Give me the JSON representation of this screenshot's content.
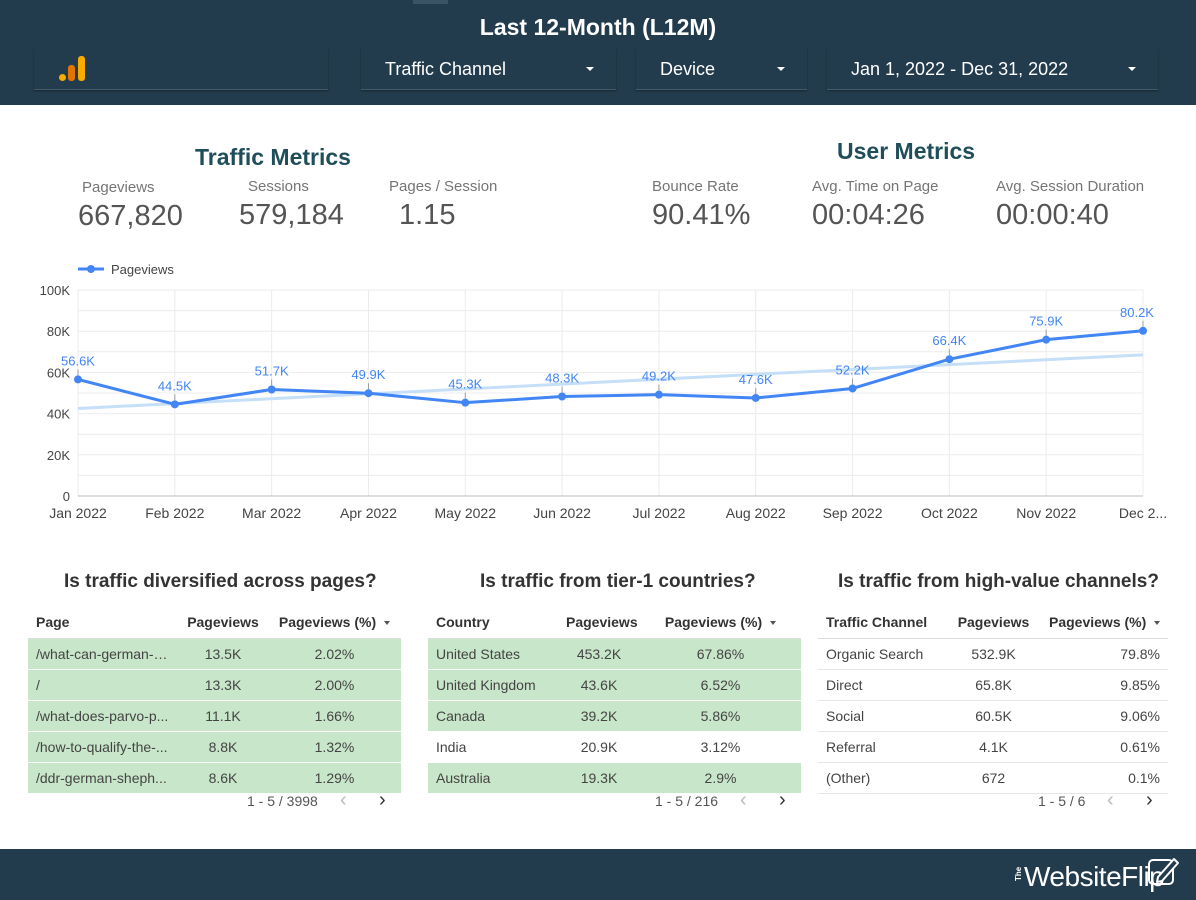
{
  "header": {
    "title": "Last 12-Month (L12M)",
    "filters": {
      "traffic_channel": "Traffic Channel",
      "device": "Device",
      "date_range": "Jan 1, 2022 - Dec 31, 2022"
    }
  },
  "traffic_metrics": {
    "title": "Traffic Metrics",
    "items": [
      {
        "label": "Pageviews",
        "value": "667,820"
      },
      {
        "label": "Sessions",
        "value": "579,184"
      },
      {
        "label": "Pages / Session",
        "value": "1.15"
      }
    ]
  },
  "user_metrics": {
    "title": "User Metrics",
    "items": [
      {
        "label": "Bounce Rate",
        "value": "90.41%"
      },
      {
        "label": "Avg. Time on Page",
        "value": "00:04:26"
      },
      {
        "label": "Avg. Session Duration",
        "value": "00:00:40"
      }
    ]
  },
  "colors": {
    "header_bg": "#233c4d",
    "series": "#4285f4",
    "trend": "#c6dff8",
    "highlight_row": "#c8e6c9",
    "section_title": "#1f4e5a"
  },
  "chart_data": {
    "type": "line",
    "legend": "top-left",
    "categories": [
      "Jan 2022",
      "Feb 2022",
      "Mar 2022",
      "Apr 2022",
      "May 2022",
      "Jun 2022",
      "Jul 2022",
      "Aug 2022",
      "Sep 2022",
      "Oct 2022",
      "Nov 2022",
      "Dec 2..."
    ],
    "series": [
      {
        "name": "Pageviews",
        "values": [
          56600,
          44500,
          51700,
          49900,
          45300,
          48300,
          49200,
          47600,
          52200,
          66400,
          75900,
          80200
        ],
        "labels": [
          "56.6K",
          "44.5K",
          "51.7K",
          "49.9K",
          "45.3K",
          "48.3K",
          "49.2K",
          "47.6K",
          "52.2K",
          "66.4K",
          "75.9K",
          "80.2K"
        ]
      }
    ],
    "trendline": {
      "start": 42500,
      "end": 68500
    },
    "yticks": [
      "0",
      "20K",
      "40K",
      "60K",
      "80K",
      "100K"
    ],
    "ylim": [
      0,
      100000
    ],
    "grid": true
  },
  "tables": [
    {
      "title": "Is traffic diversified across pages?",
      "headers": [
        "Page",
        "Pageviews",
        "Pageviews (%)"
      ],
      "rows": [
        {
          "cells": [
            "/what-can-german-s...",
            "13.5K",
            "2.02%"
          ],
          "highlight": true
        },
        {
          "cells": [
            "/",
            "13.3K",
            "2.00%"
          ],
          "highlight": true
        },
        {
          "cells": [
            "/what-does-parvo-p...",
            "11.1K",
            "1.66%"
          ],
          "highlight": true
        },
        {
          "cells": [
            "/how-to-qualify-the-...",
            "8.8K",
            "1.32%"
          ],
          "highlight": true
        },
        {
          "cells": [
            "/ddr-german-sheph...",
            "8.6K",
            "1.29%"
          ],
          "highlight": true
        }
      ],
      "pager": "1 - 5 / 3998"
    },
    {
      "title": "Is traffic from tier-1 countries?",
      "headers": [
        "Country",
        "Pageviews",
        "Pageviews (%)"
      ],
      "rows": [
        {
          "cells": [
            "United States",
            "453.2K",
            "67.86%"
          ],
          "highlight": true
        },
        {
          "cells": [
            "United Kingdom",
            "43.6K",
            "6.52%"
          ],
          "highlight": true
        },
        {
          "cells": [
            "Canada",
            "39.2K",
            "5.86%"
          ],
          "highlight": true
        },
        {
          "cells": [
            "India",
            "20.9K",
            "3.12%"
          ],
          "highlight": false
        },
        {
          "cells": [
            "Australia",
            "19.3K",
            "2.9%"
          ],
          "highlight": true
        }
      ],
      "pager": "1 - 5 / 216"
    },
    {
      "title": "Is traffic from high-value channels?",
      "headers": [
        "Traffic Channel",
        "Pageviews",
        "Pageviews (%)"
      ],
      "rows": [
        {
          "cells": [
            "Organic Search",
            "532.9K",
            "79.8%"
          ],
          "highlight": false
        },
        {
          "cells": [
            "Direct",
            "65.8K",
            "9.85%"
          ],
          "highlight": false
        },
        {
          "cells": [
            "Social",
            "60.5K",
            "9.06%"
          ],
          "highlight": false
        },
        {
          "cells": [
            "Referral",
            "4.1K",
            "0.61%"
          ],
          "highlight": false
        },
        {
          "cells": [
            "(Other)",
            "672",
            "0.1%"
          ],
          "highlight": false
        }
      ],
      "pager": "1 - 5 / 6"
    }
  ],
  "footer": {
    "brand_small": "The",
    "brand_name": "WebsiteFlip",
    "icons": {
      "logo": "google-analytics-icon",
      "pager_prev": "chevron-left-icon",
      "pager_next": "chevron-right-icon",
      "caret": "caret-down-icon",
      "brand": "pen-edit-icon"
    }
  }
}
